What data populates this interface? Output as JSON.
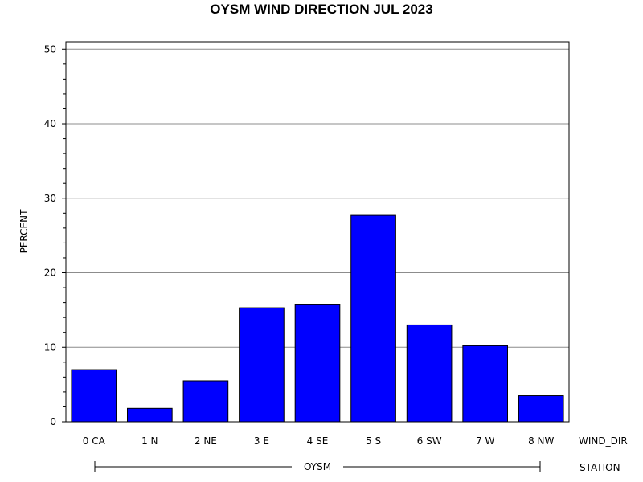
{
  "chart_data": {
    "type": "bar",
    "title": "OYSM WIND DIRECTION JUL 2023",
    "ylabel": "PERCENT",
    "xlabel": "WIND_DIR",
    "group_label": "STATION",
    "group_name": "OYSM",
    "categories": [
      "0 CA",
      "1 N",
      "2 NE",
      "3 E",
      "4 SE",
      "5 S",
      "6 SW",
      "7 W",
      "8 NW"
    ],
    "values": [
      7.0,
      1.8,
      5.5,
      15.3,
      15.7,
      27.7,
      13.0,
      10.2,
      3.5
    ],
    "ylim": [
      0,
      51
    ],
    "yticks": [
      0,
      10,
      20,
      30,
      40,
      50
    ],
    "grid": true,
    "bar_color": "#0000ff"
  }
}
